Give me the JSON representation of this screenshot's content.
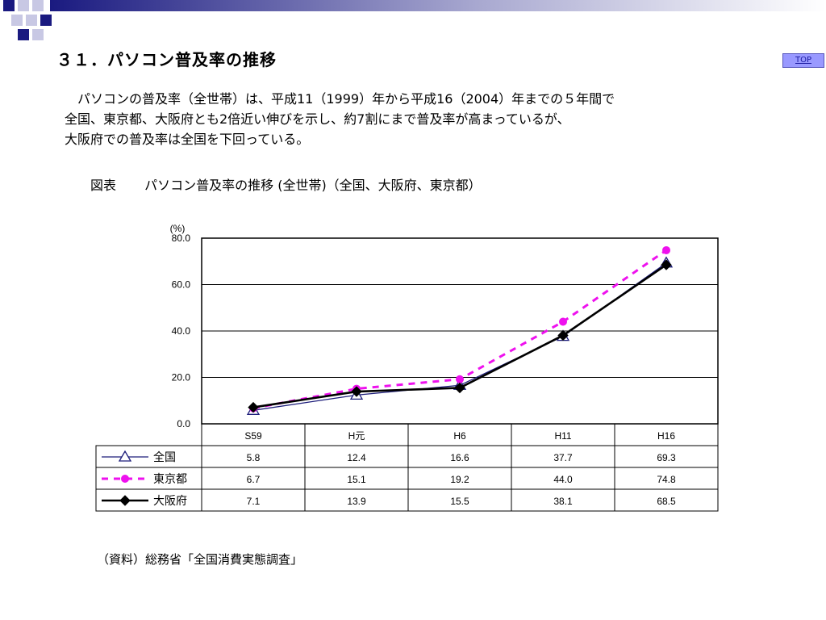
{
  "page": {
    "title": "３１．パソコン普及率の推移",
    "top_link": "TOP",
    "body_lines": [
      "パソコンの普及率（全世帯）は、平成11（1999）年から平成16（2004）年までの５年間で",
      "全国、東京都、大阪府とも2倍近い伸びを示し、約7割にまで普及率が高まっているが、",
      "大阪府での普及率は全国を下回っている。"
    ],
    "figure_label": "図表",
    "figure_title": "パソコン普及率の推移 (全世帯)（全国、大阪府、東京都）",
    "source": "（資料）総務省「全国消費実態調査」"
  },
  "chart_data": {
    "type": "line",
    "y_unit_label": "(%)",
    "ylim": [
      0,
      80
    ],
    "yticks": [
      "0.0",
      "20.0",
      "40.0",
      "60.0",
      "80.0"
    ],
    "grid": true,
    "categories": [
      "S59",
      "H元",
      "H6",
      "H11",
      "H16"
    ],
    "series": [
      {
        "name": "全国",
        "values": [
          5.8,
          12.4,
          16.6,
          37.7,
          69.3
        ],
        "labels": [
          "5.8",
          "12.4",
          "16.6",
          "37.7",
          "69.3"
        ],
        "color": "#1c1c7a",
        "marker": "triangle",
        "line": "solid-thin"
      },
      {
        "name": "東京都",
        "values": [
          6.7,
          15.1,
          19.2,
          44.0,
          74.8
        ],
        "labels": [
          "6.7",
          "15.1",
          "19.2",
          "44.0",
          "74.8"
        ],
        "color": "#ee11ee",
        "marker": "circle",
        "line": "dashed"
      },
      {
        "name": "大阪府",
        "values": [
          7.1,
          13.9,
          15.5,
          38.1,
          68.5
        ],
        "labels": [
          "7.1",
          "13.9",
          "15.5",
          "38.1",
          "68.5"
        ],
        "color": "#000000",
        "marker": "diamond",
        "line": "solid-thick"
      }
    ]
  }
}
